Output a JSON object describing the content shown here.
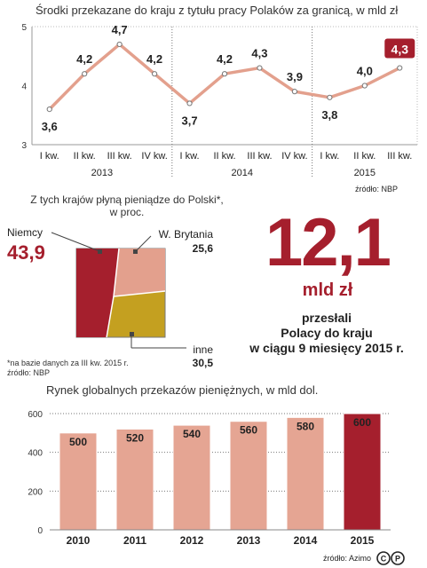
{
  "line_chart": {
    "title": "Środki przekazane do kraju z tytułu pracy Polaków za granicą, w mld zł",
    "source": "źródło: NBP"
  },
  "pie_chart": {
    "title_line1": "Z tych krajów płyną pieniądze do Polski*,",
    "title_line2": "w proc.",
    "footnote": "*na bazie danych za III kw. 2015 r.",
    "source": "źródło: NBP"
  },
  "highlight": {
    "value": "12,1",
    "unit": "mld zł",
    "desc_line1": "przesłali",
    "desc_line2": "Polacy do kraju",
    "desc_line3": "w ciągu 9 miesięcy 2015 r."
  },
  "bar_chart": {
    "title": "Rynek globalnych przekazów pieniężnych, w mld dol.",
    "source": "źródło: Azimo"
  },
  "logo": {
    "text": "©P"
  },
  "colors": {
    "accent": "#a51f2d",
    "line": "#e3a08d",
    "bar": "#e5a593",
    "bar_highlight": "#a51f2d",
    "pie_uk": "#e3a08d",
    "pie_other": "#c4a020",
    "grid_dotted": "#777777"
  },
  "chart_data": [
    {
      "type": "line",
      "title": "Środki przekazane do kraju z tytułu pracy Polaków za granicą, w mld zł",
      "categories": [
        "I kw.",
        "II kw.",
        "III kw.",
        "IV kw.",
        "I kw.",
        "II kw.",
        "III kw.",
        "IV kw.",
        "I kw.",
        "II kw.",
        "III kw."
      ],
      "groups": [
        {
          "label": "2013",
          "count": 4
        },
        {
          "label": "2014",
          "count": 4
        },
        {
          "label": "2015",
          "count": 3
        }
      ],
      "values": [
        3.6,
        4.2,
        4.7,
        4.2,
        3.7,
        4.2,
        4.3,
        3.9,
        3.8,
        4.0,
        4.3
      ],
      "labels": [
        "3,6",
        "4,2",
        "4,7",
        "4,2",
        "3,7",
        "4,2",
        "4,3",
        "3,9",
        "3,8",
        "4,0",
        "4,3"
      ],
      "highlight_index": 10,
      "ylim": [
        3,
        5
      ],
      "yticks": [
        "3",
        "4",
        "5"
      ],
      "grid": true
    },
    {
      "type": "pie",
      "slices": [
        {
          "label": "Niemcy",
          "value": 43.9,
          "text": "43,9"
        },
        {
          "label": "W. Brytania",
          "value": 25.6,
          "text": "25,6"
        },
        {
          "label": "inne",
          "value": 30.5,
          "text": "30,5"
        }
      ]
    },
    {
      "type": "bar",
      "title": "Rynek globalnych przekazów pieniężnych, w mld dol.",
      "categories": [
        "2010",
        "2011",
        "2012",
        "2013",
        "2014",
        "2015"
      ],
      "values": [
        500,
        520,
        540,
        560,
        580,
        600
      ],
      "highlight_index": 5,
      "ylim": [
        0,
        600
      ],
      "yticks": [
        "0",
        "200",
        "400",
        "600"
      ],
      "grid": true
    }
  ]
}
